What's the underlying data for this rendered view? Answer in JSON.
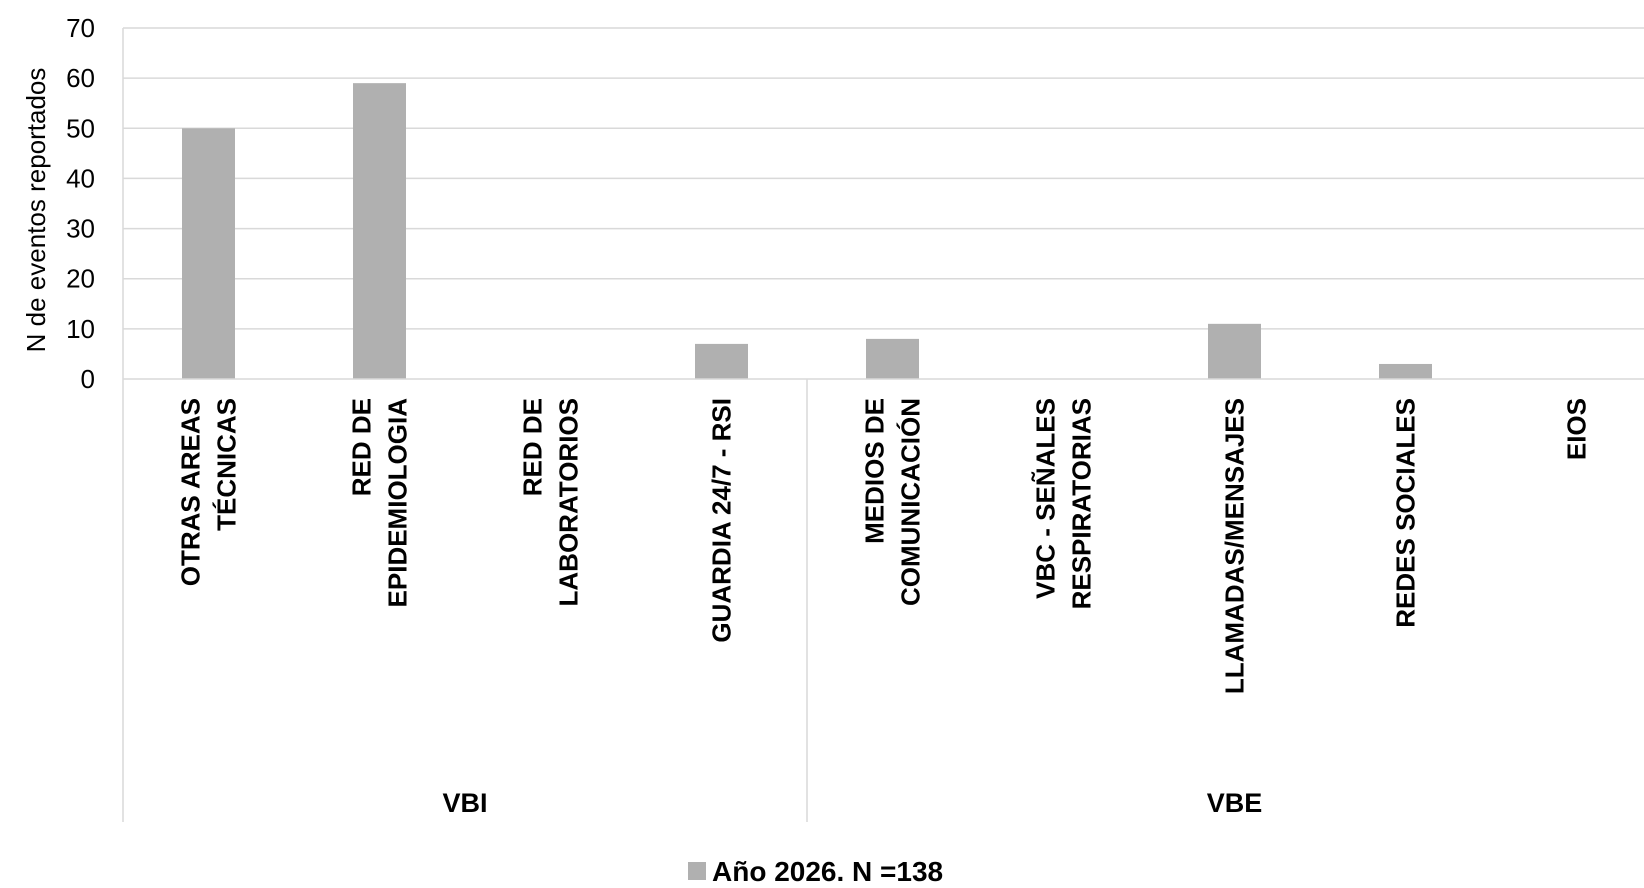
{
  "chart_data": {
    "type": "bar",
    "ylabel": "N de eventos reportados",
    "ylim": [
      0,
      70
    ],
    "yticks": [
      0,
      10,
      20,
      30,
      40,
      50,
      60,
      70
    ],
    "grid": true,
    "categories": [
      [
        "OTRAS AREAS",
        "TÉCNICAS"
      ],
      [
        "RED DE",
        "EPIDEMIOLOGIA"
      ],
      [
        "RED DE",
        "LABORATORIOS"
      ],
      [
        "GUARDIA 24/7 - RSI"
      ],
      [
        "MEDIOS DE",
        "COMUNICACIÓN"
      ],
      [
        "VBC - SEÑALES",
        "RESPIRATORIAS"
      ],
      [
        "LLAMADAS/MENSAJES"
      ],
      [
        "REDES SOCIALES"
      ],
      [
        "EIOS"
      ]
    ],
    "groups": [
      {
        "label": "VBI",
        "count": 4
      },
      {
        "label": "VBE",
        "count": 5
      }
    ],
    "series": [
      {
        "name": "Año 2026. N =138",
        "values": [
          50,
          59,
          0,
          7,
          8,
          0,
          11,
          3,
          0
        ],
        "color": "#b0b0b0"
      }
    ],
    "legend_position": "bottom"
  }
}
